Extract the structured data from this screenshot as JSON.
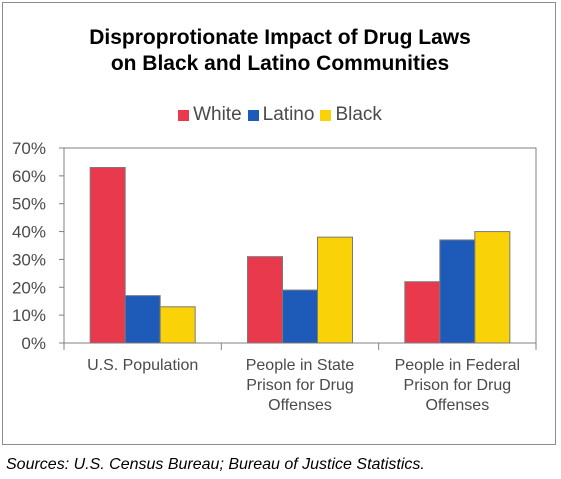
{
  "chart_data": {
    "type": "bar",
    "title": "Disproprotionate Impact of Drug Laws on Black and Latino Communities",
    "title_lines": [
      "Disproprotionate Impact of Drug Laws",
      "on Black and Latino Communities"
    ],
    "categories": [
      [
        "U.S. Population"
      ],
      [
        "People in State",
        "Prison for Drug",
        "Offenses"
      ],
      [
        "People in Federal",
        "Prison for Drug",
        "Offenses"
      ]
    ],
    "series": [
      {
        "name": "White",
        "color": "#e8394d",
        "values": [
          63,
          31,
          22
        ]
      },
      {
        "name": "Latino",
        "color": "#1e5bb8",
        "values": [
          17,
          19,
          37
        ]
      },
      {
        "name": "Black",
        "color": "#f9d308",
        "values": [
          13,
          38,
          40
        ]
      }
    ],
    "ylim": [
      0,
      70
    ],
    "yticks": [
      "0%",
      "10%",
      "20%",
      "30%",
      "40%",
      "50%",
      "60%",
      "70%"
    ],
    "grid": false,
    "legend": "top-center"
  },
  "source_note": "Sources: U.S. Census Bureau; Bureau of Justice Statistics."
}
